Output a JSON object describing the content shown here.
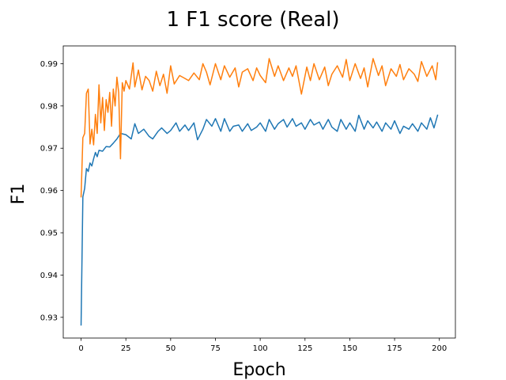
{
  "chart_data": {
    "type": "line",
    "title": "1 F1 score (Real)",
    "xlabel": "Epoch",
    "ylabel": "F1",
    "xlim": [
      -9.95,
      208.95
    ],
    "ylim": [
      0.9251,
      0.9942
    ],
    "xticks": [
      0,
      25,
      50,
      75,
      100,
      125,
      150,
      175,
      200
    ],
    "yticks": [
      0.93,
      0.94,
      0.95,
      0.96,
      0.97,
      0.98,
      0.99
    ],
    "ytick_labels": [
      "0.93",
      "0.94",
      "0.95",
      "0.96",
      "0.97",
      "0.98",
      "0.99"
    ],
    "grid": false,
    "legend": "none",
    "series": [
      {
        "color": "#1f77b4",
        "x": [
          0,
          1,
          2,
          3,
          4,
          5,
          6,
          7,
          8,
          9,
          10,
          12,
          14,
          16,
          18,
          20,
          22,
          25,
          28,
          30,
          32,
          35,
          38,
          40,
          43,
          45,
          48,
          50,
          53,
          55,
          58,
          60,
          63,
          65,
          68,
          70,
          73,
          75,
          78,
          80,
          83,
          85,
          88,
          90,
          93,
          95,
          98,
          100,
          103,
          105,
          108,
          110,
          113,
          115,
          118,
          120,
          123,
          125,
          128,
          130,
          133,
          135,
          138,
          140,
          143,
          145,
          148,
          150,
          153,
          155,
          158,
          160,
          163,
          165,
          168,
          170,
          173,
          175,
          178,
          180,
          183,
          185,
          188,
          190,
          193,
          195,
          197,
          199
        ],
        "y": [
          0.9282,
          0.9585,
          0.9605,
          0.9652,
          0.9645,
          0.9665,
          0.9658,
          0.9675,
          0.969,
          0.968,
          0.9695,
          0.9693,
          0.9704,
          0.9703,
          0.9712,
          0.9722,
          0.9735,
          0.9732,
          0.9722,
          0.9758,
          0.9735,
          0.9745,
          0.9728,
          0.9722,
          0.974,
          0.9748,
          0.9735,
          0.9742,
          0.976,
          0.974,
          0.9755,
          0.9742,
          0.976,
          0.972,
          0.9745,
          0.9768,
          0.9752,
          0.977,
          0.974,
          0.977,
          0.974,
          0.9752,
          0.9755,
          0.974,
          0.9758,
          0.9742,
          0.975,
          0.976,
          0.974,
          0.9768,
          0.9745,
          0.9758,
          0.9768,
          0.975,
          0.977,
          0.9752,
          0.976,
          0.9745,
          0.9768,
          0.9755,
          0.9762,
          0.9745,
          0.9768,
          0.975,
          0.974,
          0.9768,
          0.9745,
          0.976,
          0.974,
          0.9778,
          0.9745,
          0.9765,
          0.9748,
          0.9762,
          0.974,
          0.976,
          0.9745,
          0.9765,
          0.9735,
          0.9752,
          0.9745,
          0.9758,
          0.974,
          0.976,
          0.9745,
          0.9772,
          0.9748,
          0.9778
        ]
      },
      {
        "color": "#ff7f0e",
        "x": [
          0,
          1,
          2,
          3,
          4,
          5,
          6,
          7,
          8,
          9,
          10,
          11,
          12,
          13,
          14,
          15,
          16,
          17,
          18,
          19,
          20,
          21,
          22,
          23,
          24,
          25,
          27,
          29,
          30,
          32,
          34,
          36,
          38,
          40,
          42,
          44,
          46,
          48,
          50,
          52,
          55,
          58,
          60,
          63,
          66,
          68,
          70,
          72,
          75,
          78,
          80,
          83,
          86,
          88,
          90,
          93,
          96,
          98,
          100,
          103,
          105,
          108,
          110,
          113,
          116,
          118,
          120,
          123,
          126,
          128,
          130,
          133,
          136,
          138,
          140,
          143,
          146,
          148,
          150,
          153,
          156,
          158,
          160,
          163,
          166,
          168,
          170,
          173,
          176,
          178,
          180,
          183,
          186,
          188,
          190,
          193,
          196,
          198,
          199
        ],
        "y": [
          0.9585,
          0.9725,
          0.9735,
          0.983,
          0.984,
          0.971,
          0.9745,
          0.9708,
          0.978,
          0.9735,
          0.985,
          0.976,
          0.982,
          0.9742,
          0.9815,
          0.9785,
          0.9832,
          0.9752,
          0.984,
          0.98,
          0.9868,
          0.9832,
          0.9675,
          0.9855,
          0.9835,
          0.986,
          0.984,
          0.9902,
          0.9845,
          0.9885,
          0.9838,
          0.987,
          0.986,
          0.9835,
          0.9882,
          0.9848,
          0.9875,
          0.983,
          0.9895,
          0.9852,
          0.9872,
          0.9865,
          0.986,
          0.9878,
          0.9862,
          0.99,
          0.988,
          0.985,
          0.99,
          0.9862,
          0.9895,
          0.9868,
          0.989,
          0.9845,
          0.988,
          0.9888,
          0.986,
          0.989,
          0.9872,
          0.9855,
          0.9912,
          0.987,
          0.9895,
          0.986,
          0.989,
          0.987,
          0.9895,
          0.9828,
          0.9892,
          0.986,
          0.99,
          0.9862,
          0.9892,
          0.9848,
          0.9875,
          0.9895,
          0.9868,
          0.991,
          0.986,
          0.99,
          0.9865,
          0.989,
          0.9845,
          0.9912,
          0.9872,
          0.9895,
          0.9848,
          0.9888,
          0.987,
          0.9898,
          0.9862,
          0.9888,
          0.9875,
          0.9858,
          0.9905,
          0.987,
          0.9895,
          0.9862,
          0.9902
        ]
      }
    ]
  }
}
